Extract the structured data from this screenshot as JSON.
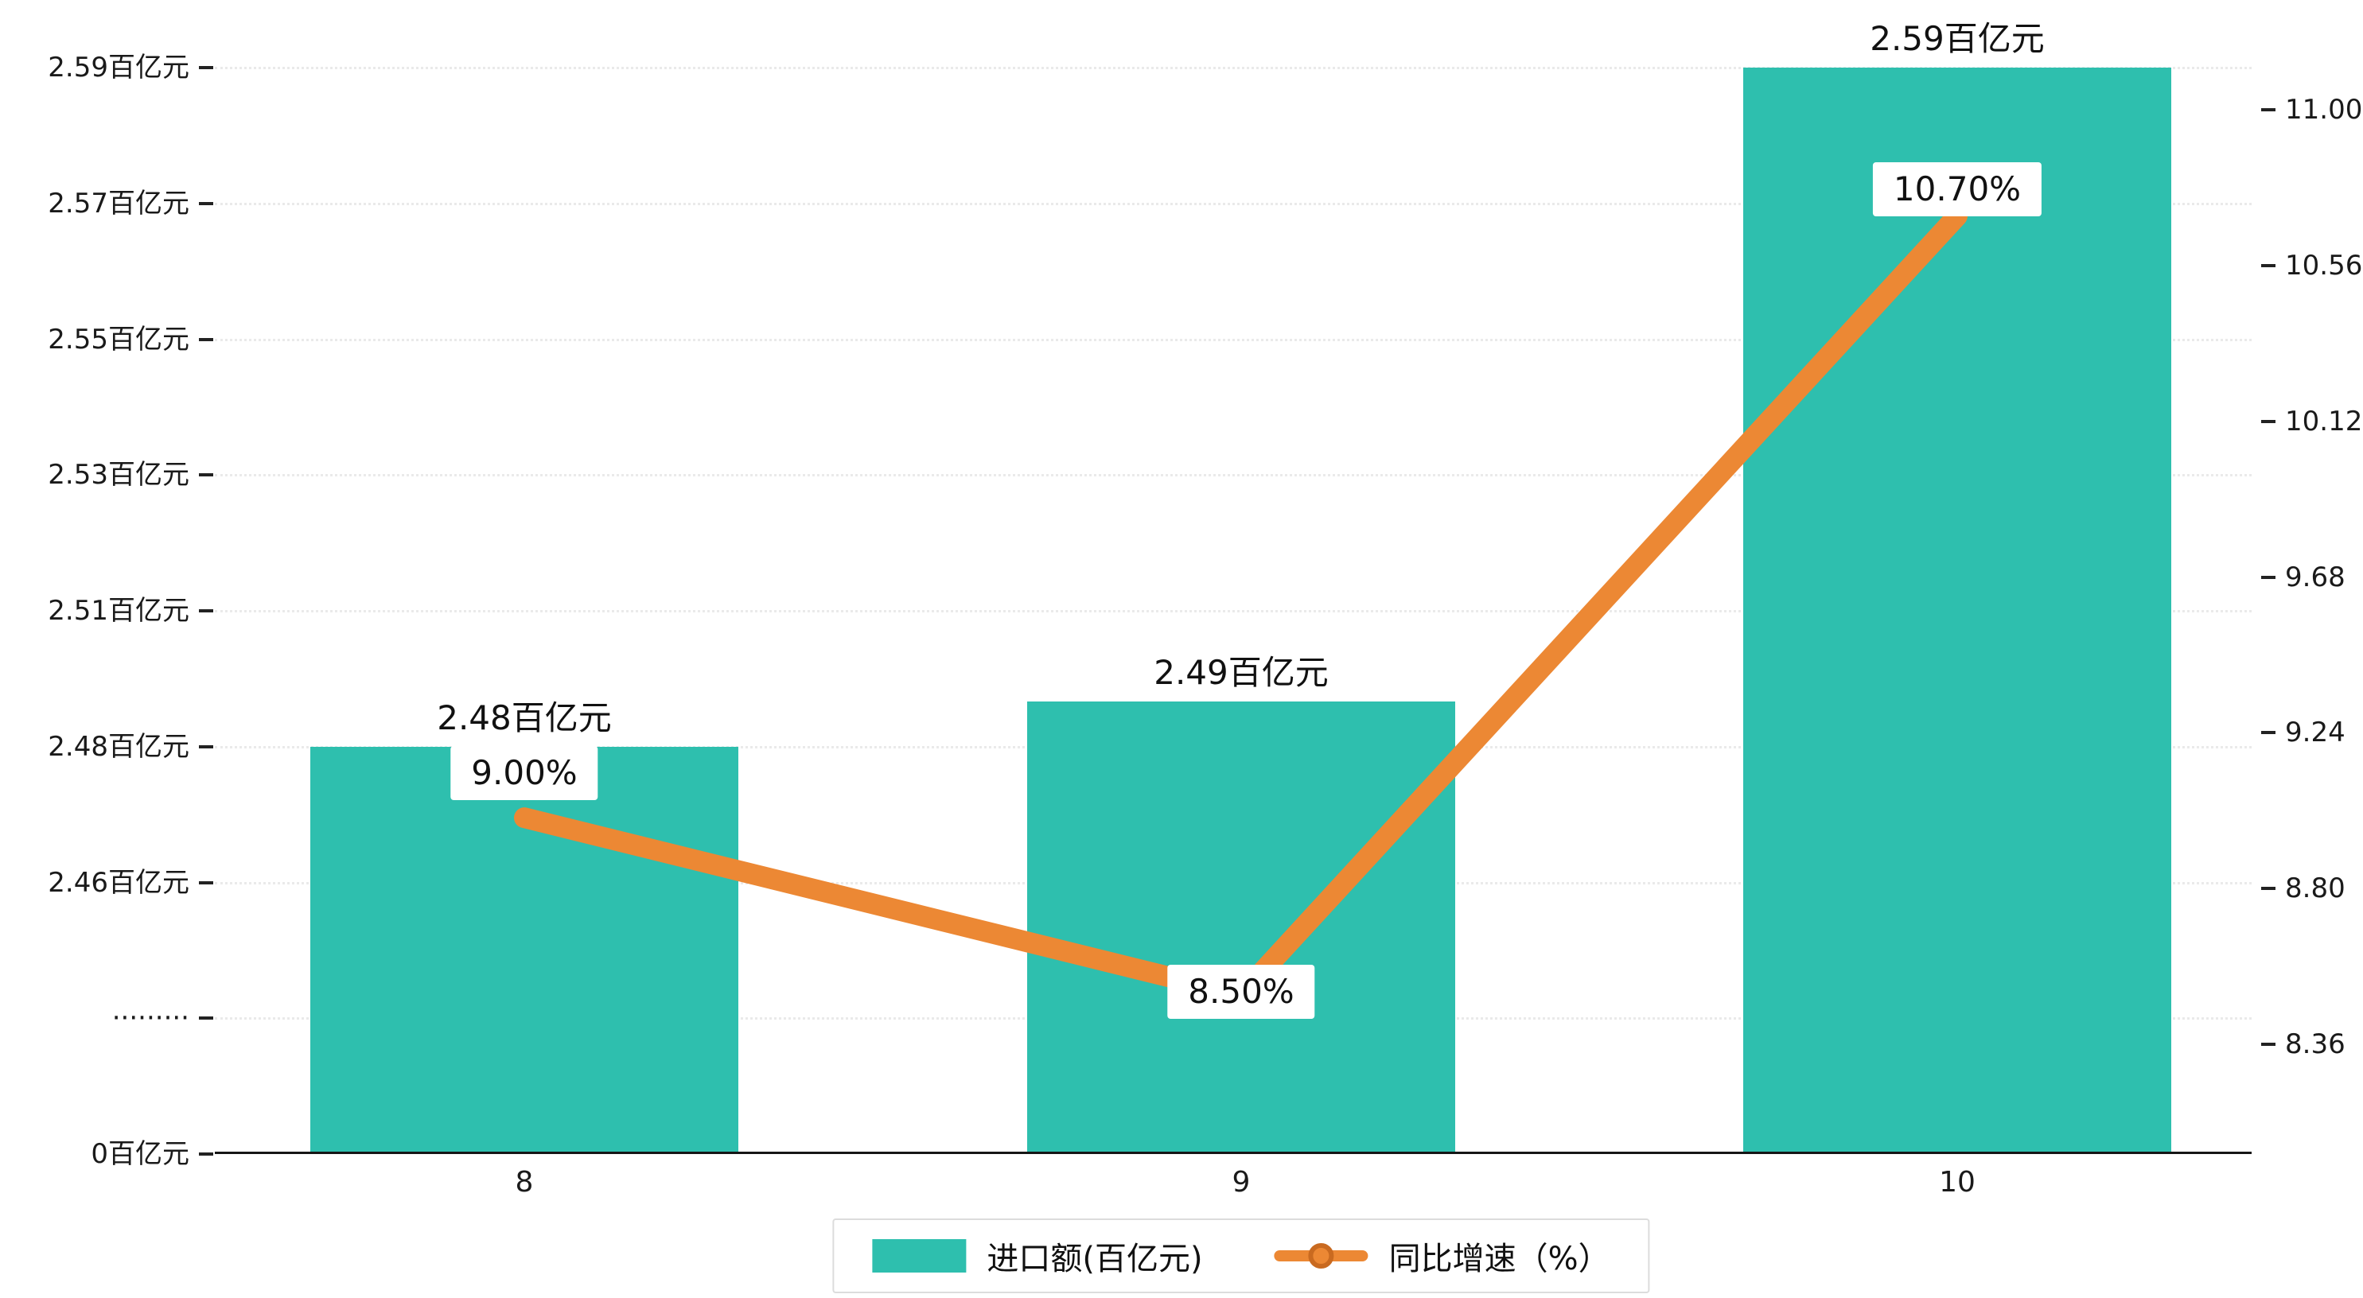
{
  "chart_data": {
    "type": "bar",
    "subtype": "bar-line-combo",
    "categories": [
      "8",
      "9",
      "10"
    ],
    "series": [
      {
        "name": "进口额(百亿元)",
        "type": "bar",
        "values": [
          2.48,
          2.49,
          2.59
        ],
        "data_labels": [
          "2.48百亿元",
          "2.49百亿元",
          "2.59百亿元"
        ],
        "color": "#2ebfae",
        "axis": "left"
      },
      {
        "name": "同比增速（%）",
        "type": "line",
        "values": [
          9.0,
          8.5,
          10.7
        ],
        "data_labels": [
          "9.00%",
          "8.50%",
          "10.70%"
        ],
        "color": "#ec8834",
        "axis": "right"
      }
    ],
    "left_axis": {
      "unit": "百亿元",
      "broken_axis": true,
      "tick_labels": [
        "0百亿元",
        "·········",
        "2.46百亿元",
        "2.48百亿元",
        "2.51百亿元",
        "2.53百亿元",
        "2.55百亿元",
        "2.57百亿元",
        "2.59百亿元"
      ]
    },
    "right_axis": {
      "min": 8.36,
      "max": 11.0,
      "tick_labels": [
        "8.36",
        "8.80",
        "9.24",
        "9.68",
        "10.12",
        "10.56",
        "11.00"
      ]
    },
    "legend": {
      "position": "bottom-center",
      "items": [
        {
          "label": "进口额(百亿元)",
          "marker": "bar-swatch"
        },
        {
          "label": "同比增速（%）",
          "marker": "line-dot"
        }
      ]
    },
    "grid": "dotted-horizontal"
  },
  "colors": {
    "bar": "#2ebfae",
    "line": "#ec8834",
    "line_dot_ring": "#c96a20",
    "grid": "#eaeaea",
    "axis_text": "#1a1a1a",
    "label_box_bg": "#ffffff",
    "background": "#ffffff"
  }
}
